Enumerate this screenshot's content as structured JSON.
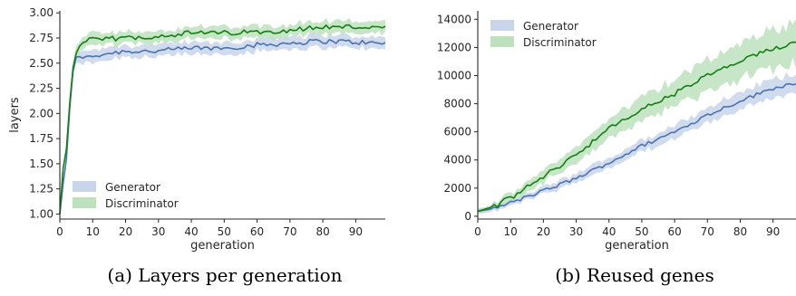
{
  "colors": {
    "generator": "#4c72b0",
    "discriminator": "#138013",
    "generator_band": "#c8d5ea",
    "discriminator_band": "#bde0bd"
  },
  "chart_data": [
    {
      "type": "line",
      "caption": "(a) Layers per generation",
      "xlabel": "generation",
      "ylabel": "layers",
      "xlim": [
        0,
        99
      ],
      "ylim": [
        0.95,
        3.02
      ],
      "xticks": [
        0,
        10,
        20,
        30,
        40,
        50,
        60,
        70,
        80,
        90
      ],
      "yticks": [
        1.0,
        1.25,
        1.5,
        1.75,
        2.0,
        2.25,
        2.5,
        2.75,
        3.0
      ],
      "ytick_decimals": 2,
      "legend_position": "lower-left",
      "grid": false,
      "series": [
        {
          "name": "Generator",
          "color": "#4c72b0",
          "band": "#c8d5ea",
          "knots": [
            [
              0,
              1.0
            ],
            [
              1,
              1.3
            ],
            [
              2,
              1.55
            ],
            [
              3,
              2.05
            ],
            [
              4,
              2.42
            ],
            [
              5,
              2.55
            ],
            [
              6,
              2.58
            ],
            [
              8,
              2.55
            ],
            [
              10,
              2.57
            ],
            [
              15,
              2.6
            ],
            [
              20,
              2.62
            ],
            [
              30,
              2.62
            ],
            [
              40,
              2.65
            ],
            [
              50,
              2.65
            ],
            [
              60,
              2.68
            ],
            [
              70,
              2.7
            ],
            [
              80,
              2.72
            ],
            [
              90,
              2.71
            ],
            [
              99,
              2.69
            ]
          ],
          "noise": 0.025,
          "band_halfwidth": 0.06
        },
        {
          "name": "Discriminator",
          "color": "#138013",
          "band": "#bde0bd",
          "knots": [
            [
              0,
              1.0
            ],
            [
              1,
              1.45
            ],
            [
              2,
              1.65
            ],
            [
              3,
              2.1
            ],
            [
              4,
              2.45
            ],
            [
              5,
              2.6
            ],
            [
              6,
              2.68
            ],
            [
              7,
              2.72
            ],
            [
              10,
              2.73
            ],
            [
              20,
              2.75
            ],
            [
              30,
              2.77
            ],
            [
              40,
              2.8
            ],
            [
              50,
              2.8
            ],
            [
              60,
              2.81
            ],
            [
              70,
              2.83
            ],
            [
              80,
              2.86
            ],
            [
              90,
              2.86
            ],
            [
              99,
              2.85
            ]
          ],
          "noise": 0.025,
          "band_halfwidth": 0.06
        }
      ]
    },
    {
      "type": "line",
      "caption": "(b) Reused genes",
      "xlabel": "generation",
      "ylabel": "",
      "xlim": [
        0,
        97
      ],
      "ylim": [
        -200,
        14600
      ],
      "xticks": [
        0,
        10,
        20,
        30,
        40,
        50,
        60,
        70,
        80,
        90
      ],
      "yticks": [
        0,
        2000,
        4000,
        6000,
        8000,
        10000,
        12000,
        14000
      ],
      "ytick_decimals": 0,
      "legend_position": "upper-left",
      "grid": false,
      "series": [
        {
          "name": "Generator",
          "color": "#4c72b0",
          "band": "#c8d5ea",
          "knots": [
            [
              0,
              350
            ],
            [
              5,
              550
            ],
            [
              10,
              950
            ],
            [
              20,
              1800
            ],
            [
              30,
              2700
            ],
            [
              40,
              3800
            ],
            [
              50,
              5000
            ],
            [
              60,
              6000
            ],
            [
              70,
              7200
            ],
            [
              80,
              8200
            ],
            [
              90,
              9100
            ],
            [
              97,
              9500
            ]
          ],
          "noise": 130,
          "band_halfwidth": [
            150,
            700
          ]
        },
        {
          "name": "Discriminator",
          "color": "#138013",
          "band": "#bde0bd",
          "knots": [
            [
              0,
              350
            ],
            [
              5,
              700
            ],
            [
              10,
              1300
            ],
            [
              20,
              2800
            ],
            [
              30,
              4400
            ],
            [
              40,
              6200
            ],
            [
              50,
              7600
            ],
            [
              60,
              8700
            ],
            [
              70,
              10000
            ],
            [
              80,
              11000
            ],
            [
              90,
              11900
            ],
            [
              97,
              12400
            ]
          ],
          "noise": 180,
          "band_halfwidth": [
            150,
            1500
          ]
        }
      ]
    }
  ]
}
